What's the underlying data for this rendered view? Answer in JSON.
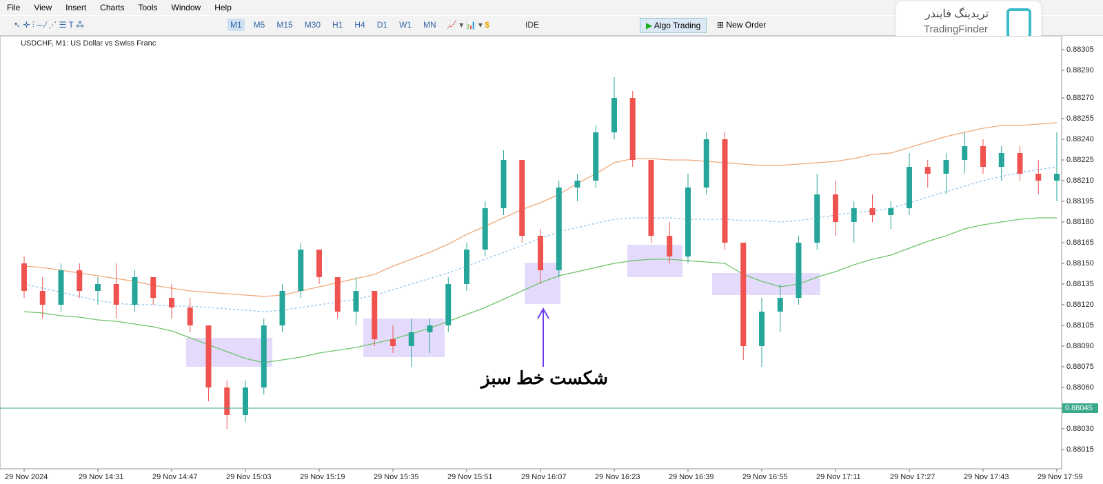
{
  "menu": [
    "File",
    "View",
    "Insert",
    "Charts",
    "Tools",
    "Window",
    "Help"
  ],
  "toolbar": {
    "timeframes": [
      "M1",
      "M5",
      "M15",
      "M30",
      "H1",
      "H4",
      "D1",
      "W1",
      "MN"
    ],
    "ide": "IDE",
    "algo": "Algo Trading",
    "order": "New Order"
  },
  "logo": {
    "fa": "تریدینگ فایندر",
    "en": "TradingFinder"
  },
  "chart_header": "USDCHF, M1:  US Dollar vs Swiss Franc",
  "annotation": "شکست خط سبز",
  "chart_data": {
    "type": "candlestick",
    "categories": [
      "29 Nov 2024",
      null,
      null,
      null,
      "29 Nov 14:31",
      null,
      null,
      null,
      "29 Nov 14:47",
      null,
      null,
      null,
      "29 Nov 15:03",
      null,
      null,
      null,
      "29 Nov 15:19",
      null,
      null,
      null,
      "29 Nov 15:35",
      null,
      null,
      null,
      "29 Nov 15:51",
      null,
      null,
      null,
      "29 Nov 16:07",
      null,
      null,
      null,
      "29 Nov 16:23",
      null,
      null,
      null,
      "29 Nov 16:39",
      null,
      null,
      null,
      "29 Nov 16:55",
      null,
      null,
      null,
      "29 Nov 17:11",
      null,
      null,
      null,
      "29 Nov 17:27",
      null,
      null,
      null,
      "29 Nov 17:43",
      null,
      null,
      null,
      "29 Nov 17:59"
    ],
    "open": [
      0.8815,
      0.8813,
      0.8812,
      0.88145,
      0.8813,
      0.88135,
      0.8812,
      0.8814,
      0.88125,
      0.88118,
      0.88105,
      0.8806,
      0.8804,
      0.8806,
      0.88105,
      0.8813,
      0.8816,
      0.8814,
      0.88115,
      0.8813,
      0.88095,
      0.8809,
      0.881,
      0.88105,
      0.88135,
      0.8816,
      0.8819,
      0.88225,
      0.8817,
      0.88145,
      0.88205,
      0.8821,
      0.88245,
      0.8827,
      0.88225,
      0.8817,
      0.88155,
      0.88205,
      0.8824,
      0.88165,
      0.8809,
      0.88115,
      0.88125,
      0.88165,
      0.882,
      0.8818,
      0.8819,
      0.88185,
      0.8819,
      0.8822,
      0.88215,
      0.88225,
      0.88235,
      0.8822,
      0.8823,
      0.88215,
      0.8821
    ],
    "high": [
      0.88155,
      0.8814,
      0.8815,
      0.8815,
      0.8814,
      0.8815,
      0.88145,
      0.8814,
      0.88135,
      0.88125,
      0.88105,
      0.88065,
      0.88065,
      0.8811,
      0.88135,
      0.88165,
      0.8816,
      0.8814,
      0.8814,
      0.8813,
      0.88105,
      0.8811,
      0.8811,
      0.8814,
      0.88165,
      0.88195,
      0.88232,
      0.88225,
      0.88175,
      0.8821,
      0.88215,
      0.8825,
      0.88285,
      0.88275,
      0.88225,
      0.8818,
      0.88215,
      0.88245,
      0.88245,
      0.88165,
      0.88125,
      0.88135,
      0.8817,
      0.88215,
      0.8821,
      0.88195,
      0.882,
      0.88195,
      0.8823,
      0.88225,
      0.8823,
      0.88245,
      0.8824,
      0.88235,
      0.88235,
      0.88225,
      0.88245
    ],
    "low": [
      0.88125,
      0.8811,
      0.88115,
      0.88125,
      0.8812,
      0.8811,
      0.88115,
      0.8812,
      0.8811,
      0.881,
      0.8805,
      0.8803,
      0.88035,
      0.88055,
      0.881,
      0.88125,
      0.88135,
      0.8811,
      0.88105,
      0.8809,
      0.88085,
      0.88075,
      0.88085,
      0.881,
      0.8813,
      0.88155,
      0.88185,
      0.88165,
      0.88135,
      0.8814,
      0.88195,
      0.88205,
      0.8824,
      0.8822,
      0.88165,
      0.8815,
      0.8815,
      0.882,
      0.8816,
      0.8808,
      0.88075,
      0.881,
      0.8812,
      0.8816,
      0.8817,
      0.88165,
      0.8818,
      0.88175,
      0.88185,
      0.88205,
      0.882,
      0.88215,
      0.88215,
      0.8821,
      0.8821,
      0.882,
      0.88195
    ],
    "close": [
      0.8813,
      0.8812,
      0.88145,
      0.8813,
      0.88135,
      0.8812,
      0.8814,
      0.88125,
      0.88118,
      0.88105,
      0.8806,
      0.8804,
      0.8806,
      0.88105,
      0.8813,
      0.8816,
      0.8814,
      0.88115,
      0.8813,
      0.88095,
      0.8809,
      0.881,
      0.88105,
      0.88135,
      0.8816,
      0.8819,
      0.88225,
      0.8817,
      0.88145,
      0.88205,
      0.8821,
      0.88245,
      0.8827,
      0.88225,
      0.8817,
      0.88155,
      0.88205,
      0.8824,
      0.88165,
      0.8809,
      0.88115,
      0.88125,
      0.88165,
      0.882,
      0.8818,
      0.8819,
      0.88185,
      0.8819,
      0.8822,
      0.88215,
      0.88225,
      0.88235,
      0.8822,
      0.8823,
      0.88215,
      0.8821,
      0.88215
    ],
    "up_color": "#26a69a",
    "down_color": "#ef5350",
    "lines": [
      {
        "color": "#f0a878",
        "dash": false,
        "values": [
          0.88148,
          0.88147,
          0.88145,
          0.88143,
          0.88141,
          0.88139,
          0.88137,
          0.88134,
          0.88132,
          0.8813,
          0.88129,
          0.88128,
          0.88127,
          0.88126,
          0.88127,
          0.8813,
          0.88133,
          0.88136,
          0.88139,
          0.88142,
          0.88148,
          0.88153,
          0.88158,
          0.88164,
          0.88171,
          0.88177,
          0.88183,
          0.88189,
          0.88194,
          0.882,
          0.88208,
          0.88215,
          0.88223,
          0.88226,
          0.88226,
          0.88225,
          0.88225,
          0.88224,
          0.88223,
          0.88222,
          0.88221,
          0.88221,
          0.88222,
          0.88223,
          0.88224,
          0.88226,
          0.88229,
          0.8823,
          0.88234,
          0.88238,
          0.88242,
          0.88245,
          0.88248,
          0.8825,
          0.8825,
          0.88251,
          0.88252
        ]
      },
      {
        "color": "#8ec3ec",
        "dash": true,
        "values": [
          0.88135,
          0.88132,
          0.88129,
          0.88126,
          0.88123,
          0.88121,
          0.8812,
          0.8812,
          0.88119,
          0.88119,
          0.88118,
          0.88117,
          0.88116,
          0.88115,
          0.88116,
          0.88118,
          0.8812,
          0.88122,
          0.88124,
          0.88127,
          0.88131,
          0.88135,
          0.88139,
          0.88143,
          0.88148,
          0.88153,
          0.88158,
          0.88163,
          0.88168,
          0.88173,
          0.88176,
          0.88179,
          0.88182,
          0.88183,
          0.88183,
          0.88183,
          0.88182,
          0.88182,
          0.88182,
          0.88181,
          0.88181,
          0.8818,
          0.88181,
          0.88183,
          0.88185,
          0.88187,
          0.88188,
          0.8819,
          0.88194,
          0.88198,
          0.88202,
          0.88206,
          0.8821,
          0.88213,
          0.88216,
          0.88218,
          0.8822
        ]
      },
      {
        "color": "#6cc36a",
        "dash": false,
        "values": [
          0.88115,
          0.88114,
          0.88112,
          0.88111,
          0.88109,
          0.88108,
          0.88106,
          0.88104,
          0.88101,
          0.88096,
          0.88091,
          0.88086,
          0.88081,
          0.88078,
          0.8808,
          0.88082,
          0.88085,
          0.88087,
          0.88089,
          0.88092,
          0.88095,
          0.88099,
          0.88103,
          0.88108,
          0.88113,
          0.88118,
          0.88124,
          0.8813,
          0.88136,
          0.88141,
          0.88144,
          0.88147,
          0.8815,
          0.88152,
          0.88153,
          0.88153,
          0.88152,
          0.88151,
          0.8815,
          0.88142,
          0.88137,
          0.88133,
          0.88135,
          0.8814,
          0.88144,
          0.88149,
          0.88153,
          0.88156,
          0.88161,
          0.88166,
          0.8817,
          0.88175,
          0.88178,
          0.8818,
          0.88182,
          0.88183,
          0.88183
        ]
      }
    ],
    "price_line": 0.88045,
    "price_line_color": "#3aa88a",
    "ylim": [
      0.88002,
      0.88314
    ],
    "yticks": [
      0.88015,
      {
        "value": 0.8803,
        "label": "0.88030"
      },
      0.88045,
      {
        "value": 0.8806,
        "label": "0.88060"
      },
      0.88075,
      {
        "value": 0.8809,
        "label": "0.88090"
      },
      0.88105,
      {
        "value": 0.8812,
        "label": "0.88120"
      },
      0.88135,
      {
        "value": 0.8815,
        "label": "0.88150"
      },
      0.88165,
      {
        "value": 0.8818,
        "label": "0.88180"
      },
      0.88195,
      {
        "value": 0.8821,
        "label": "0.88210"
      },
      0.88225,
      {
        "value": 0.8824,
        "label": "0.88240"
      },
      0.88255,
      {
        "value": 0.8827,
        "label": "0.88270"
      },
      {
        "value": 0.8829,
        "label": "0.88290"
      },
      0.88305
    ]
  }
}
